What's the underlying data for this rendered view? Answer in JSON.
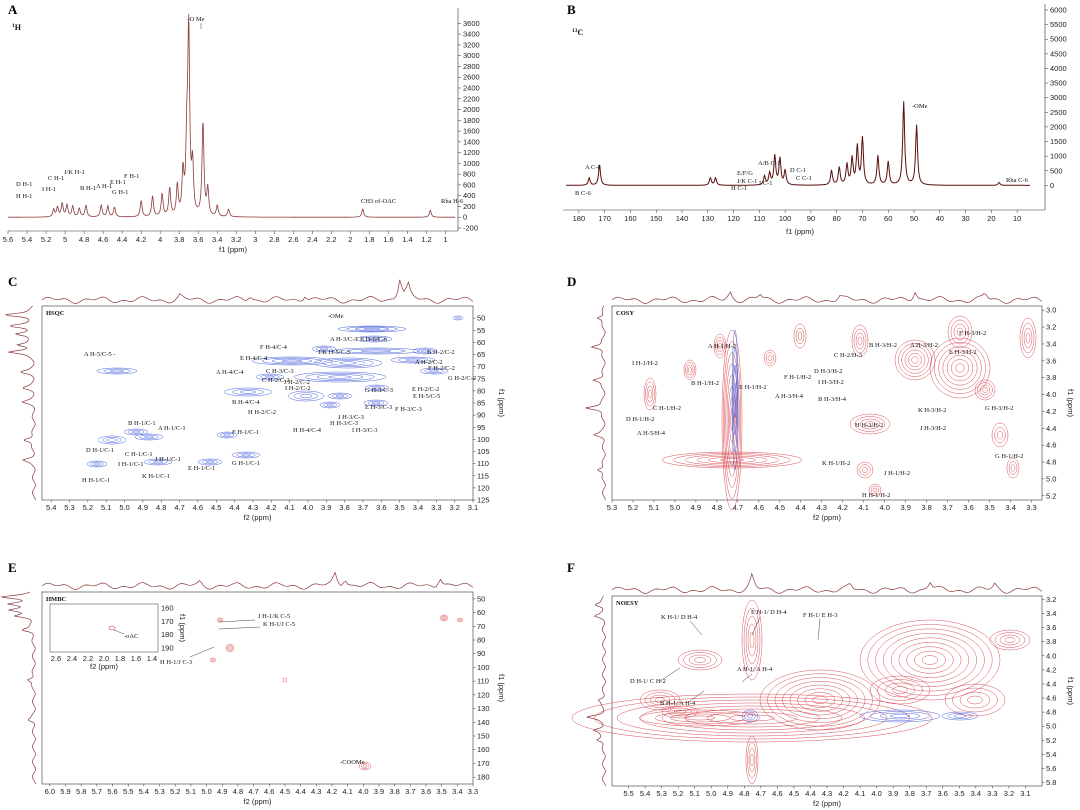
{
  "chart_data": [
    {
      "id": "A",
      "type": "line",
      "title": "1H",
      "xlabel": "f1 (ppm)",
      "xlim": [
        5.6,
        0.9
      ],
      "ylim": [
        -200,
        3700
      ],
      "x_ticks": [
        5.6,
        5.4,
        5.2,
        5.0,
        4.8,
        4.6,
        4.4,
        4.2,
        4.0,
        3.8,
        3.6,
        3.4,
        3.2,
        3.0,
        2.8,
        2.6,
        2.4,
        2.2,
        2.0,
        1.8,
        1.6,
        1.4,
        1.2,
        1.0
      ],
      "y_ticks": [
        -200,
        0,
        200,
        400,
        600,
        800,
        1000,
        1200,
        1400,
        1600,
        1800,
        2000,
        2200,
        2400,
        2600,
        2800,
        3000,
        3200,
        3400,
        3600
      ],
      "peaks": [
        {
          "x": 5.12,
          "y": 140
        },
        {
          "x": 5.08,
          "y": 180
        },
        {
          "x": 5.03,
          "y": 250
        },
        {
          "x": 4.98,
          "y": 220
        },
        {
          "x": 4.92,
          "y": 200
        },
        {
          "x": 4.85,
          "y": 160
        },
        {
          "x": 4.78,
          "y": 220
        },
        {
          "x": 4.62,
          "y": 220
        },
        {
          "x": 4.55,
          "y": 200
        },
        {
          "x": 4.48,
          "y": 180
        },
        {
          "x": 4.2,
          "y": 300
        },
        {
          "x": 4.08,
          "y": 380
        },
        {
          "x": 3.98,
          "y": 420
        },
        {
          "x": 3.9,
          "y": 520
        },
        {
          "x": 3.82,
          "y": 560
        },
        {
          "x": 3.76,
          "y": 780
        },
        {
          "x": 3.72,
          "y": 1200
        },
        {
          "x": 3.7,
          "y": 3380
        },
        {
          "x": 3.66,
          "y": 900
        },
        {
          "x": 3.55,
          "y": 1750
        },
        {
          "x": 3.5,
          "y": 500
        },
        {
          "x": 3.4,
          "y": 200
        },
        {
          "x": 3.28,
          "y": 140
        },
        {
          "x": 1.87,
          "y": 150
        },
        {
          "x": 1.16,
          "y": 130
        }
      ],
      "annotations": [
        "-O Me",
        "D H-1",
        "H H-1",
        "I H-1",
        "C H-1",
        "J/K H-1",
        "B H-1",
        "A H-1",
        "E H-1",
        "G H-1",
        "F H-1",
        "CH3 of-OAC",
        "Rha H-6"
      ]
    },
    {
      "id": "B",
      "type": "line",
      "title": "13C",
      "xlabel": "f1 (ppm)",
      "xlim": [
        185,
        5
      ],
      "ylim": [
        -500,
        6000
      ],
      "x_ticks": [
        180,
        170,
        160,
        150,
        140,
        130,
        120,
        110,
        100,
        90,
        80,
        70,
        60,
        50,
        40,
        30,
        20,
        10
      ],
      "y_ticks": [
        0,
        500,
        1000,
        1500,
        2000,
        2500,
        3000,
        3500,
        4000,
        4500,
        5000,
        5500,
        6000
      ],
      "peaks": [
        {
          "x": 176,
          "y": 250
        },
        {
          "x": 172,
          "y": 700
        },
        {
          "x": 129,
          "y": 250
        },
        {
          "x": 127,
          "y": 250
        },
        {
          "x": 108,
          "y": 300
        },
        {
          "x": 106,
          "y": 400
        },
        {
          "x": 104,
          "y": 1000
        },
        {
          "x": 102,
          "y": 900
        },
        {
          "x": 100,
          "y": 500
        },
        {
          "x": 82,
          "y": 500
        },
        {
          "x": 79,
          "y": 600
        },
        {
          "x": 76,
          "y": 700
        },
        {
          "x": 74,
          "y": 900
        },
        {
          "x": 72,
          "y": 1300
        },
        {
          "x": 70,
          "y": 1600
        },
        {
          "x": 64,
          "y": 1000
        },
        {
          "x": 60,
          "y": 800
        },
        {
          "x": 54,
          "y": 2850
        },
        {
          "x": 49,
          "y": 2050
        },
        {
          "x": 17,
          "y": 100
        }
      ],
      "annotations": [
        "-OMe",
        "A C-6",
        "B C-6",
        "A/B C-1",
        "D C-1",
        "C C-1",
        "E/F/G",
        "J/K C-1",
        "I C-1",
        "H C-1",
        "Rha C-6"
      ]
    },
    {
      "id": "C",
      "type": "heatmap",
      "title": "HSQC",
      "xlabel": "f2 (ppm)",
      "ylabel": "f1 (ppm)",
      "xlim": [
        5.45,
        3.1
      ],
      "ylim": [
        125,
        45
      ],
      "x_ticks": [
        5.4,
        5.3,
        5.2,
        5.1,
        5.0,
        4.9,
        4.8,
        4.7,
        4.6,
        4.5,
        4.4,
        4.3,
        4.2,
        4.1,
        4.0,
        3.9,
        3.8,
        3.7,
        3.6,
        3.5,
        3.4,
        3.3,
        3.2,
        3.1
      ],
      "y_ticks": [
        50,
        55,
        60,
        65,
        70,
        75,
        80,
        85,
        90,
        95,
        100,
        105,
        110,
        115,
        120,
        125
      ],
      "annotations": [
        "-OMe",
        "A H-5/C-5 -",
        "E H-6/C-6",
        "A H-3/C-3",
        "J/K H-5/C-5",
        "B H-2/C-2",
        "E H-4/C-4",
        "F H-4/C-4",
        "A H-2/C-2",
        "F H-2/C-2",
        "G H-2/C-2",
        "A H-4/C-4",
        "C H-3/C-3",
        "C H-2/C-2",
        "I H-2/C-2",
        "J H-2/C-2",
        "G H-3/C-3",
        "E H-2/C-2",
        "E H-5/C-5",
        "B H-4/C-4",
        "H H-2/C-2",
        "H H-3/C-3",
        "E H-3/C-3",
        "F H-3/C-3",
        "J H-3/C-3",
        "I H-3/C-3",
        "H H-4/C-4",
        "B H-1/C-1",
        "A H-1/C-1",
        "C H-1/C-1",
        "F H-1/C-1",
        "D H-1/C-1",
        "I H-1/C-1",
        "J H-1/C-1",
        "E H-1/C-1",
        "G H-1/C-1",
        "H H-1/C-1",
        "K H-1/C-1"
      ]
    },
    {
      "id": "D",
      "type": "heatmap",
      "title": "COSY",
      "xlabel": "f2 (ppm)",
      "ylabel": "f1 (ppm)",
      "xlim": [
        5.3,
        3.25
      ],
      "ylim": [
        5.25,
        2.95
      ],
      "x_ticks": [
        5.3,
        5.2,
        5.1,
        5.0,
        4.9,
        4.8,
        4.7,
        4.6,
        4.5,
        4.4,
        4.3,
        4.2,
        4.1,
        4.0,
        3.9,
        3.8,
        3.7,
        3.6,
        3.5,
        3.4,
        3.3
      ],
      "y_ticks": [
        3.0,
        3.2,
        3.4,
        3.6,
        3.8,
        4.0,
        4.2,
        4.4,
        4.6,
        4.8,
        5.0,
        5.2
      ],
      "annotations": [
        "A H-1/H-2",
        "I H-1/H-2",
        "B H-1/H-2",
        "E H-1/H-2",
        "F H-1/H-2",
        "C H-2/H-3",
        "B H-3/H-2",
        "A H-3/H-2",
        "F H-3/H-2",
        "E H-3/H-2",
        "D H-1/H-2",
        "C H-1/H-2",
        "A H-5/H-4",
        "D H-3/H-2",
        "I H-3/H-2",
        "A H-3/H-4",
        "B H-3/H-4",
        "K H-3/H-2",
        "H H-3/H-2",
        "J H-3/H-2",
        "G H-3/H-2",
        "G H-1/H-2",
        "K H-1/H-2",
        "J H-1/H-2",
        "H H-1/H-2"
      ]
    },
    {
      "id": "E",
      "type": "heatmap",
      "title": "HMBC",
      "xlabel": "f2 (ppm)",
      "ylabel": "f1 (ppm)",
      "xlim": [
        6.05,
        3.3
      ],
      "ylim": [
        185,
        45
      ],
      "x_ticks": [
        6.0,
        5.9,
        5.8,
        5.7,
        5.6,
        5.5,
        5.4,
        5.3,
        5.2,
        5.1,
        5.0,
        4.9,
        4.8,
        4.7,
        4.6,
        4.5,
        4.4,
        4.3,
        4.2,
        4.1,
        4.0,
        3.9,
        3.8,
        3.7,
        3.6,
        3.5,
        3.4,
        3.3
      ],
      "y_ticks": [
        50,
        60,
        70,
        80,
        90,
        100,
        110,
        120,
        130,
        140,
        150,
        160,
        170,
        180
      ],
      "inset": {
        "x_ticks": [
          2.6,
          2.4,
          2.2,
          2.0,
          1.8,
          1.6,
          1.4
        ],
        "y_ticks": [
          160,
          170,
          180,
          190
        ],
        "xlabel": "f2 (ppm)",
        "ylabel": "f1 (ppm)",
        "annotation": "-oAC"
      },
      "annotations": [
        "J H-1/K C-5",
        "K H-1/J C-5",
        "H H-1/J C-3",
        "-COOMe"
      ]
    },
    {
      "id": "F",
      "type": "heatmap",
      "title": "NOESY",
      "xlabel": "f2 (ppm)",
      "ylabel": "f1 (ppm)",
      "xlim": [
        5.6,
        3.0
      ],
      "ylim": [
        5.85,
        3.15
      ],
      "x_ticks": [
        5.5,
        5.4,
        5.3,
        5.2,
        5.1,
        5.0,
        4.9,
        4.8,
        4.7,
        4.6,
        4.5,
        4.4,
        4.3,
        4.2,
        4.1,
        4.0,
        3.9,
        3.8,
        3.7,
        3.6,
        3.5,
        3.4,
        3.3,
        3.2,
        3.1
      ],
      "y_ticks": [
        3.2,
        3.4,
        3.6,
        3.8,
        4.0,
        4.2,
        4.4,
        4.6,
        4.8,
        5.0,
        5.2,
        5.4,
        5.6,
        5.8
      ],
      "annotations": [
        "E H-1/ D H-4",
        "K H-1/ D H-4",
        "F H-1/ E H-3",
        "A H-1/ A H-4",
        "D H-1/ C H-2",
        "B H-1/ A H-4"
      ]
    }
  ]
}
